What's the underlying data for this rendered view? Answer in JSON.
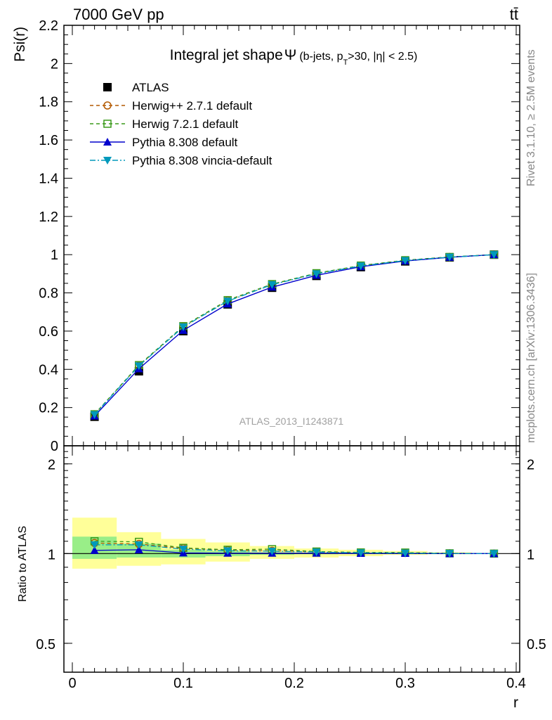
{
  "header": {
    "energy_label": "7000 GeV pp",
    "process_label": "tt̄"
  },
  "side_labels": {
    "rivet": "Rivet 3.1.10, ≥ 2.5M events",
    "mcplots": "mcplots.cern.ch [arXiv:1306.3436]"
  },
  "watermark": "ATLAS_2013_I1243871",
  "chart_data": [
    {
      "type": "line",
      "title_main": "Integral jet shape",
      "title_symbol": "Ψ",
      "title_sub_pre": "(b-jets, p",
      "title_sub_T": "T",
      "title_sub_post": ">30, |η| < 2.5)",
      "xlabel": "r",
      "ylabel": "Psi(r)",
      "xlim": [
        0,
        0.4
      ],
      "ylim": [
        0,
        2.2
      ],
      "y_ticks": [
        "0",
        "0.2",
        "0.4",
        "0.6",
        "0.8",
        "1",
        "1.2",
        "1.4",
        "1.6",
        "1.8",
        "2",
        "2.2"
      ],
      "legend_position": "top-left",
      "x": [
        0.02,
        0.06,
        0.1,
        0.14,
        0.18,
        0.22,
        0.26,
        0.3,
        0.34,
        0.38
      ],
      "series": [
        {
          "name": "ATLAS",
          "color": "#000000",
          "marker": "square-filled",
          "line": "none",
          "values": [
            0.152,
            0.39,
            0.6,
            0.74,
            0.827,
            0.889,
            0.935,
            0.965,
            0.986,
            1.0
          ]
        },
        {
          "name": "Herwig++ 2.7.1 default",
          "color": "#b35900",
          "marker": "circle-open",
          "line": "dashed",
          "values": [
            0.165,
            0.42,
            0.625,
            0.76,
            0.845,
            0.902,
            0.942,
            0.97,
            0.988,
            1.0
          ]
        },
        {
          "name": "Herwig 7.2.1 default",
          "color": "#3a9a1a",
          "marker": "square-open",
          "line": "dashed",
          "values": [
            0.165,
            0.422,
            0.626,
            0.762,
            0.846,
            0.903,
            0.943,
            0.971,
            0.988,
            1.0
          ]
        },
        {
          "name": "Pythia 8.308 default",
          "color": "#0000cc",
          "marker": "triangle-up",
          "line": "solid",
          "values": [
            0.156,
            0.403,
            0.604,
            0.742,
            0.83,
            0.892,
            0.937,
            0.967,
            0.986,
            1.0
          ]
        },
        {
          "name": "Pythia 8.308 vincia-default",
          "color": "#0099bb",
          "marker": "triangle-down",
          "line": "dashdot",
          "values": [
            0.163,
            0.418,
            0.622,
            0.757,
            0.843,
            0.9,
            0.941,
            0.969,
            0.987,
            1.0
          ]
        }
      ]
    },
    {
      "type": "line",
      "title": "",
      "xlabel": "r",
      "ylabel": "Ratio to ATLAS",
      "xlim": [
        0,
        0.4
      ],
      "x_ticks": [
        "0",
        "0.1",
        "0.2",
        "0.3",
        "0.4"
      ],
      "y_scale": "log",
      "ylim": [
        0.4,
        2.3
      ],
      "y_ticks": [
        "0.5",
        "1",
        "2"
      ],
      "x": [
        0.02,
        0.06,
        0.1,
        0.14,
        0.18,
        0.22,
        0.26,
        0.3,
        0.34,
        0.38
      ],
      "bins": [
        [
          0,
          0.04
        ],
        [
          0.04,
          0.08
        ],
        [
          0.08,
          0.12
        ],
        [
          0.12,
          0.16
        ],
        [
          0.16,
          0.2
        ],
        [
          0.2,
          0.24
        ],
        [
          0.24,
          0.28
        ],
        [
          0.28,
          0.32
        ],
        [
          0.32,
          0.36
        ],
        [
          0.36,
          0.4
        ]
      ],
      "stat_band": [
        [
          0.96,
          1.14
        ],
        [
          0.97,
          1.08
        ],
        [
          0.97,
          1.03
        ],
        [
          0.98,
          1.02
        ],
        [
          0.99,
          1.01
        ],
        [
          0.995,
          1.005
        ],
        [
          0.997,
          1.003
        ],
        [
          0.998,
          1.002
        ],
        [
          0.999,
          1.001
        ],
        [
          1.0,
          1.0
        ]
      ],
      "total_band": [
        [
          0.89,
          1.32
        ],
        [
          0.91,
          1.18
        ],
        [
          0.92,
          1.12
        ],
        [
          0.94,
          1.09
        ],
        [
          0.96,
          1.06
        ],
        [
          0.97,
          1.04
        ],
        [
          0.98,
          1.03
        ],
        [
          0.99,
          1.02
        ],
        [
          0.995,
          1.01
        ],
        [
          1.0,
          1.0
        ]
      ],
      "stat_band_color": "#99ee88",
      "total_band_color": "#ffff99",
      "series": [
        {
          "name": "Herwig++ 2.7.1 default",
          "color": "#b35900",
          "marker": "circle-open",
          "line": "dashed",
          "values": [
            1.085,
            1.077,
            1.042,
            1.027,
            1.022,
            1.015,
            1.007,
            1.005,
            1.002,
            1.0
          ]
        },
        {
          "name": "Herwig 7.2.1 default",
          "color": "#3a9a1a",
          "marker": "square-open",
          "line": "dashed",
          "values": [
            1.1,
            1.095,
            1.045,
            1.03,
            1.035,
            1.016,
            1.009,
            1.008,
            1.002,
            1.0
          ]
        },
        {
          "name": "Pythia 8.308 default",
          "color": "#0000cc",
          "marker": "triangle-up",
          "line": "solid",
          "values": [
            1.025,
            1.03,
            1.005,
            1.003,
            1.003,
            1.003,
            1.002,
            1.002,
            1.0,
            1.0
          ]
        },
        {
          "name": "Pythia 8.308 vincia-default",
          "color": "#0099bb",
          "marker": "triangle-down",
          "line": "dashdot",
          "values": [
            1.07,
            1.07,
            1.035,
            1.022,
            1.019,
            1.012,
            1.006,
            1.004,
            1.001,
            1.0
          ]
        }
      ]
    }
  ]
}
